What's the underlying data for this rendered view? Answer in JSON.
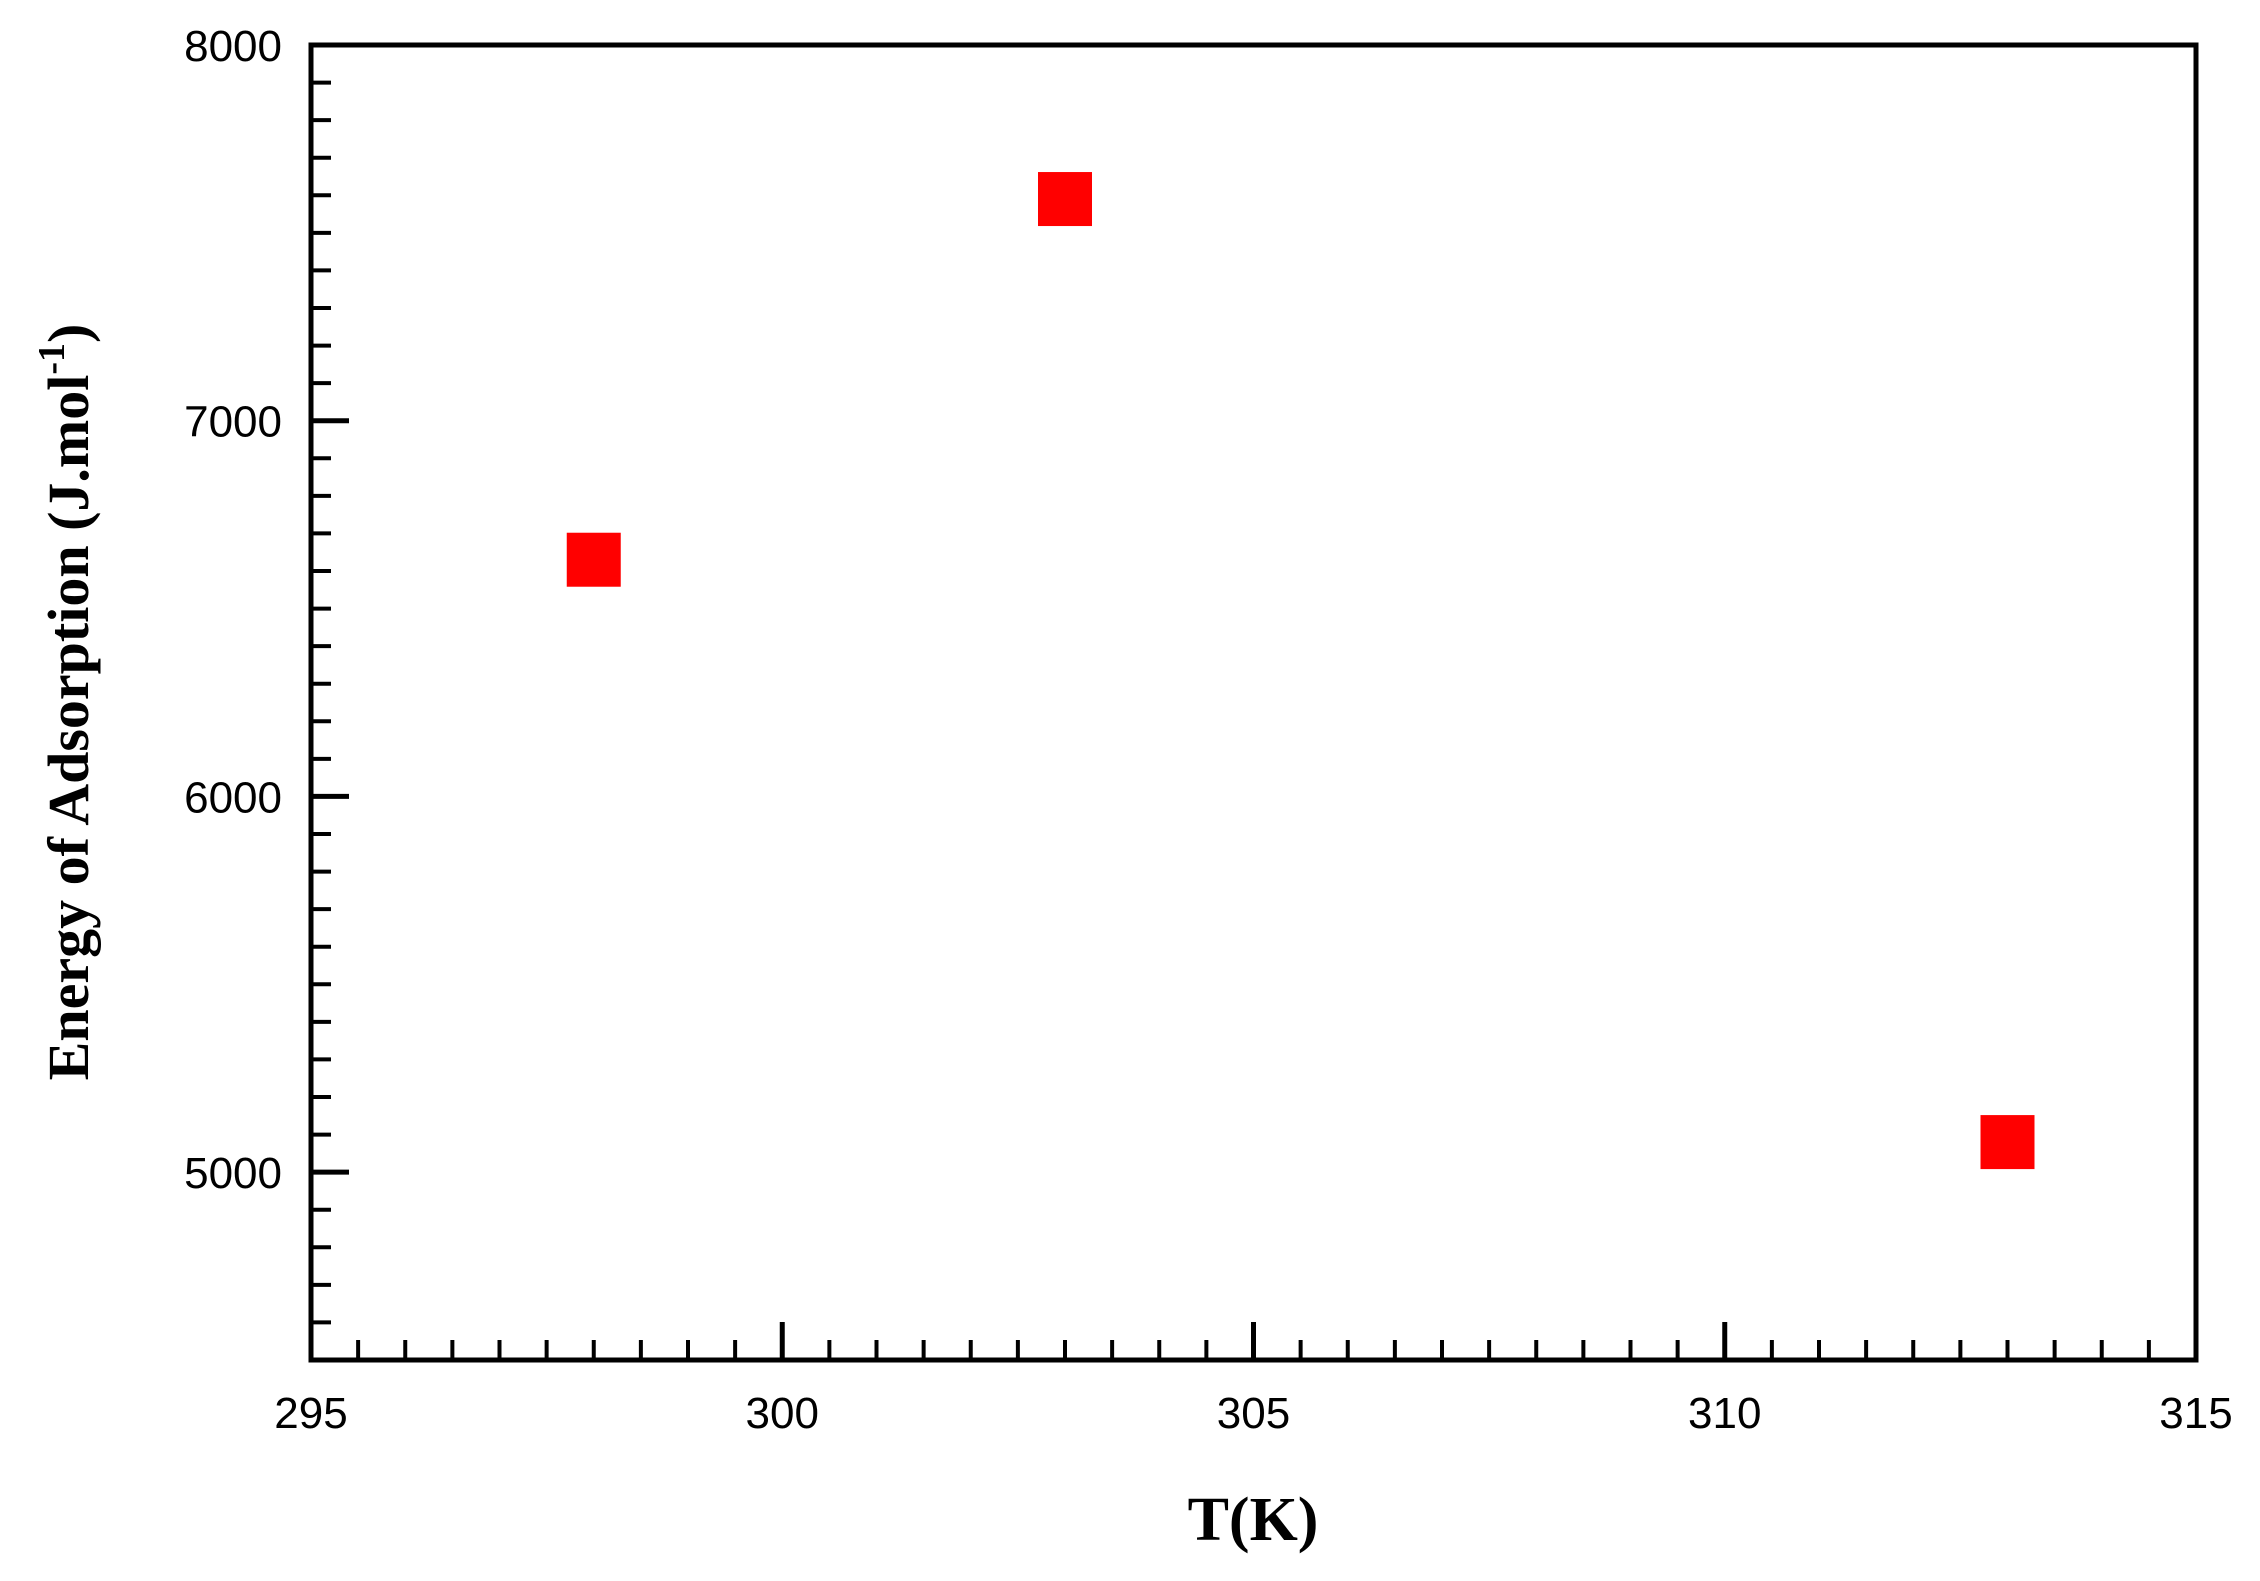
{
  "chart_data": {
    "type": "scatter",
    "title": "",
    "xlabel": "T(K)",
    "ylabel": {
      "text": "Energy of Adsorption (J.mol",
      "superscript": "-1",
      "suffix": ")"
    },
    "xlim": [
      295,
      315
    ],
    "ylim": [
      4500,
      8000
    ],
    "xticks": [
      295,
      300,
      305,
      310,
      315
    ],
    "yticks": [
      5000,
      6000,
      7000,
      8000
    ],
    "x_minor_step": 0.5,
    "y_minor_step": 100,
    "grid": false,
    "legend": "none",
    "marker": "square",
    "color": "#ff0000",
    "series": [
      {
        "x": [
          298,
          303,
          313
        ],
        "y": [
          6630,
          7590,
          5080
        ]
      }
    ]
  }
}
